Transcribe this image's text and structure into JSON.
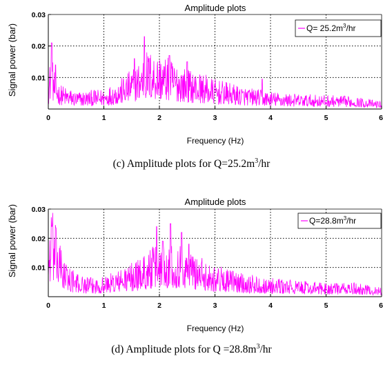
{
  "chart_data": [
    {
      "type": "line",
      "title": "Amplitude plots",
      "xlabel": "Frequency (Hz)",
      "ylabel": "Signal power (bar)",
      "xlim": [
        0,
        6
      ],
      "ylim": [
        0,
        0.03
      ],
      "xticks": [
        "0",
        "1",
        "2",
        "3",
        "4",
        "5",
        "6"
      ],
      "yticks": [
        "0.01",
        "0.02",
        "0.03"
      ],
      "grid": true,
      "legend_position": "top-right",
      "series": [
        {
          "name_prefix": "Q= 25.2m",
          "name_sup": "3",
          "name_suffix": "/hr",
          "color": "#ff00ff",
          "envelope": {
            "x": [
              0.0,
              0.05,
              0.1,
              0.2,
              0.5,
              1.0,
              1.3,
              1.6,
              1.75,
              2.0,
              2.2,
              2.5,
              2.8,
              3.0,
              3.5,
              4.0,
              4.5,
              5.0,
              5.5,
              6.0
            ],
            "y": [
              0.006,
              0.012,
              0.008,
              0.005,
              0.0035,
              0.004,
              0.006,
              0.009,
              0.012,
              0.011,
              0.01,
              0.008,
              0.007,
              0.006,
              0.0045,
              0.0035,
              0.003,
              0.0028,
              0.0025,
              0.0015
            ]
          },
          "peaks": [
            {
              "x": 0.06,
              "y": 0.021
            },
            {
              "x": 0.13,
              "y": 0.014
            },
            {
              "x": 1.73,
              "y": 0.023
            },
            {
              "x": 1.55,
              "y": 0.016
            },
            {
              "x": 2.18,
              "y": 0.017
            },
            {
              "x": 2.5,
              "y": 0.015
            },
            {
              "x": 3.85,
              "y": 0.0095
            }
          ]
        }
      ],
      "caption_prefix": "(c) Amplitude plots for Q=25.2m",
      "caption_sup": "3",
      "caption_suffix": "/hr"
    },
    {
      "type": "line",
      "title": "Amplitude plots",
      "xlabel": "Frequency (Hz)",
      "ylabel": "Signal power (bar)",
      "xlim": [
        0,
        6
      ],
      "ylim": [
        0,
        0.03
      ],
      "xticks": [
        "0",
        "1",
        "2",
        "3",
        "4",
        "5",
        "6"
      ],
      "yticks": [
        "0.01",
        "0.02",
        "0.03"
      ],
      "grid": true,
      "legend_position": "top-right",
      "series": [
        {
          "name_prefix": "Q=28.8m",
          "name_sup": "3",
          "name_suffix": "/hr",
          "color": "#ff00ff",
          "envelope": {
            "x": [
              0.0,
              0.05,
              0.1,
              0.2,
              0.3,
              0.5,
              0.8,
              1.0,
              1.3,
              1.6,
              1.9,
              2.0,
              2.2,
              2.4,
              2.6,
              2.8,
              3.0,
              3.5,
              4.0,
              4.5,
              5.0,
              5.5,
              6.0
            ],
            "y": [
              0.012,
              0.02,
              0.017,
              0.012,
              0.008,
              0.005,
              0.004,
              0.0045,
              0.006,
              0.008,
              0.011,
              0.012,
              0.012,
              0.011,
              0.01,
              0.008,
              0.007,
              0.005,
              0.004,
              0.0035,
              0.003,
              0.003,
              0.002
            ]
          },
          "peaks": [
            {
              "x": 0.06,
              "y": 0.024
            },
            {
              "x": 0.14,
              "y": 0.019
            },
            {
              "x": 1.95,
              "y": 0.024
            },
            {
              "x": 2.06,
              "y": 0.019
            },
            {
              "x": 2.2,
              "y": 0.025
            },
            {
              "x": 2.4,
              "y": 0.022
            },
            {
              "x": 2.53,
              "y": 0.018
            }
          ]
        }
      ],
      "caption_prefix": "(d) Amplitude plots for Q =28.8m",
      "caption_sup": "3",
      "caption_suffix": "/hr"
    }
  ]
}
